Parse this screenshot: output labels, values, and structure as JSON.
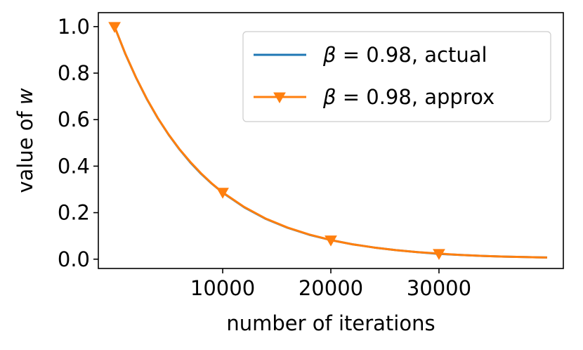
{
  "chart_data": {
    "type": "line",
    "xlabel": "number of iterations",
    "ylabel_prefix": "value of ",
    "ylabel_var": "w",
    "xlim": [
      -1500,
      41500
    ],
    "ylim": [
      -0.04,
      1.06
    ],
    "xticks": [
      10000,
      20000,
      30000
    ],
    "xtick_labels": [
      "10000",
      "20000",
      "30000"
    ],
    "yticks": [
      0.0,
      0.2,
      0.4,
      0.6,
      0.8,
      1.0
    ],
    "ytick_labels": [
      "0.0",
      "0.2",
      "0.4",
      "0.6",
      "0.8",
      "1.0"
    ],
    "grid": false,
    "legend_position": "top-right",
    "series": [
      {
        "name": "β = 0.98, actual",
        "legend_symbol": "β",
        "legend_rest": " = 0.98, actual",
        "color": "#1f77b4",
        "marker": "none",
        "x": [
          0,
          1000,
          2000,
          3000,
          4000,
          5000,
          6000,
          7000,
          8000,
          9000,
          10000,
          12000,
          14000,
          16000,
          18000,
          20000,
          22000,
          24000,
          26000,
          28000,
          30000,
          32000,
          34000,
          36000,
          38000,
          39999
        ],
        "y": [
          1.0,
          0.882,
          0.779,
          0.687,
          0.606,
          0.535,
          0.472,
          0.416,
          0.367,
          0.324,
          0.286,
          0.223,
          0.173,
          0.135,
          0.105,
          0.082,
          0.064,
          0.05,
          0.039,
          0.03,
          0.023,
          0.018,
          0.014,
          0.011,
          0.009,
          0.007
        ]
      },
      {
        "name": "β = 0.98, approx",
        "legend_symbol": "β",
        "legend_rest": " = 0.98, approx",
        "color": "#ff7f0e",
        "marker": "triangle-down",
        "marker_x": [
          0,
          10000,
          20000,
          30000
        ],
        "marker_y": [
          1.0,
          0.287,
          0.082,
          0.024
        ],
        "x": [
          0,
          1000,
          2000,
          3000,
          4000,
          5000,
          6000,
          7000,
          8000,
          9000,
          10000,
          12000,
          14000,
          16000,
          18000,
          20000,
          22000,
          24000,
          26000,
          28000,
          30000,
          32000,
          34000,
          36000,
          38000,
          39999
        ],
        "y": [
          1.0,
          0.883,
          0.78,
          0.688,
          0.607,
          0.536,
          0.473,
          0.418,
          0.369,
          0.325,
          0.287,
          0.224,
          0.174,
          0.136,
          0.106,
          0.082,
          0.064,
          0.05,
          0.039,
          0.03,
          0.024,
          0.018,
          0.014,
          0.011,
          0.009,
          0.007
        ]
      }
    ]
  }
}
